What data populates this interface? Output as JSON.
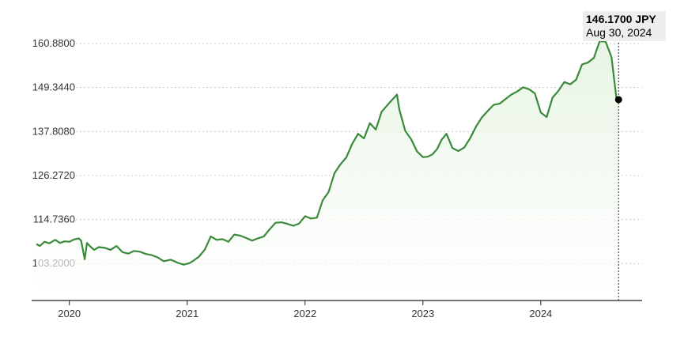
{
  "colors": {
    "line": "#3a8a3a",
    "fill_top": "#e6f4e2",
    "grid": "#c8c8c8",
    "axis": "#222222",
    "marker": "#000000",
    "tooltip_bg": "#eeeeee"
  },
  "tooltip": {
    "value": "146.1700 JPY",
    "date": "Aug 30, 2024"
  },
  "chart_data": {
    "type": "area",
    "title": "",
    "xlabel": "",
    "ylabel": "",
    "unit": "JPY",
    "grid": "horizontal-dotted",
    "y_ticks": [
      "160.8800",
      "149.3440",
      "137.8080",
      "126.2720",
      "114.7360",
      "103.2000"
    ],
    "y_tick_values": [
      160.88,
      149.344,
      137.808,
      126.272,
      114.736,
      103.2
    ],
    "ylim": [
      93.5,
      164
    ],
    "x_ticks": [
      "2020",
      "2021",
      "2022",
      "2023",
      "2024"
    ],
    "x_tick_years": [
      2020,
      2021,
      2022,
      2023,
      2024
    ],
    "xlim": [
      2019.68,
      2024.86
    ],
    "series": [
      {
        "x": [
          2019.72,
          2019.75,
          2019.79,
          2019.83,
          2019.88,
          2019.92,
          2019.96,
          2020.0,
          2020.04,
          2020.08,
          2020.1,
          2020.13,
          2020.15,
          2020.18,
          2020.21,
          2020.25,
          2020.3,
          2020.35,
          2020.4,
          2020.45,
          2020.5,
          2020.55,
          2020.6,
          2020.65,
          2020.7,
          2020.75,
          2020.8,
          2020.86,
          2020.92,
          2020.97,
          2021.02,
          2021.06,
          2021.1,
          2021.15,
          2021.2,
          2021.25,
          2021.3,
          2021.35,
          2021.4,
          2021.45,
          2021.5,
          2021.55,
          2021.6,
          2021.65,
          2021.7,
          2021.75,
          2021.8,
          2021.85,
          2021.9,
          2021.95,
          2022.0,
          2022.05,
          2022.1,
          2022.15,
          2022.2,
          2022.25,
          2022.3,
          2022.35,
          2022.4,
          2022.45,
          2022.5,
          2022.55,
          2022.6,
          2022.65,
          2022.72,
          2022.78,
          2022.8,
          2022.85,
          2022.9,
          2022.95,
          2023.0,
          2023.04,
          2023.08,
          2023.12,
          2023.16,
          2023.2,
          2023.25,
          2023.3,
          2023.35,
          2023.4,
          2023.45,
          2023.5,
          2023.55,
          2023.6,
          2023.65,
          2023.7,
          2023.75,
          2023.8,
          2023.85,
          2023.9,
          2023.95,
          2024.0,
          2024.05,
          2024.1,
          2024.15,
          2024.2,
          2024.25,
          2024.3,
          2024.35,
          2024.4,
          2024.45,
          2024.5,
          2024.55,
          2024.6,
          2024.64,
          2024.66
        ],
        "values": [
          108.3,
          107.8,
          108.9,
          108.5,
          109.4,
          108.6,
          109.0,
          108.9,
          109.5,
          109.8,
          109.2,
          104.3,
          108.6,
          107.6,
          106.8,
          107.5,
          107.3,
          106.8,
          107.8,
          106.2,
          105.8,
          106.5,
          106.3,
          105.7,
          105.4,
          104.8,
          103.8,
          104.2,
          103.4,
          102.9,
          103.3,
          104.1,
          105.0,
          106.9,
          110.3,
          109.4,
          109.6,
          108.9,
          110.8,
          110.5,
          109.9,
          109.2,
          109.8,
          110.3,
          112.2,
          113.9,
          114.0,
          113.6,
          113.1,
          113.7,
          115.6,
          115.0,
          115.2,
          119.8,
          122.0,
          126.9,
          129.2,
          131.0,
          134.6,
          137.2,
          136.0,
          140.0,
          138.3,
          143.0,
          145.5,
          147.5,
          143.6,
          138.0,
          135.8,
          132.6,
          131.1,
          131.2,
          131.8,
          133.2,
          135.7,
          137.2,
          133.5,
          132.7,
          133.6,
          136.0,
          139.1,
          141.5,
          143.2,
          144.8,
          145.1,
          146.3,
          147.5,
          148.3,
          149.4,
          148.9,
          147.8,
          142.8,
          141.6,
          146.7,
          148.5,
          150.8,
          150.2,
          151.4,
          155.4,
          155.9,
          157.1,
          161.5,
          161.4,
          157.3,
          147.0,
          146.17
        ]
      }
    ],
    "last_point": {
      "x": 2024.66,
      "y": 146.17
    }
  }
}
